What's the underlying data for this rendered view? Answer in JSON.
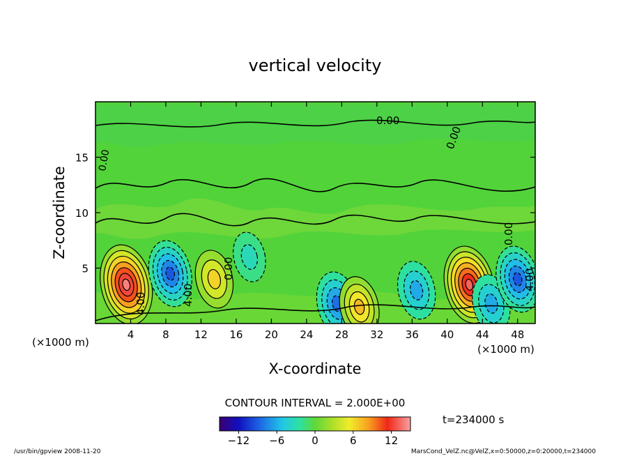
{
  "chart_data": {
    "type": "heatmap",
    "title": "vertical velocity",
    "xlabel": "X-coordinate",
    "ylabel": "Z-coordinate",
    "x_unit": "(×1000 m)",
    "y_unit": "(×1000 m)",
    "xlim": [
      0,
      50
    ],
    "ylim": [
      0,
      20
    ],
    "x_ticks": [
      "4",
      "8",
      "12",
      "16",
      "20",
      "24",
      "28",
      "32",
      "36",
      "40",
      "44",
      "48"
    ],
    "y_ticks": [
      "5",
      "10",
      "15"
    ],
    "contour_interval_text": "CONTOUR INTERVAL = 2.000E+00",
    "contour_labels": [
      "0.00",
      "0.00",
      "0.00",
      "0.00",
      "0.00",
      "4.00",
      "4.00",
      "4.00"
    ],
    "time_text": "t=234000 s",
    "colorbar": {
      "range": [
        -15,
        15
      ],
      "ticks": [
        "−12",
        "−6",
        "0",
        "6",
        "12"
      ]
    },
    "cells": [
      {
        "x": 3.5,
        "z": 3.5,
        "value": 14
      },
      {
        "x": 8.5,
        "z": 4.5,
        "value": -9
      },
      {
        "x": 13.5,
        "z": 4.0,
        "value": 6
      },
      {
        "x": 17.5,
        "z": 6.0,
        "value": -3
      },
      {
        "x": 27.5,
        "z": 1.8,
        "value": -8
      },
      {
        "x": 30.0,
        "z": 1.5,
        "value": 7
      },
      {
        "x": 36.5,
        "z": 3.0,
        "value": -6
      },
      {
        "x": 42.5,
        "z": 3.5,
        "value": 13
      },
      {
        "x": 45.0,
        "z": 1.8,
        "value": -6
      },
      {
        "x": 48.0,
        "z": 4.0,
        "value": -9
      }
    ]
  },
  "footer": {
    "left": "/usr/bin/gpview   2008-11-20",
    "right": "MarsCond_VelZ.nc@VelZ,x=0:50000,z=0:20000,t=234000"
  }
}
